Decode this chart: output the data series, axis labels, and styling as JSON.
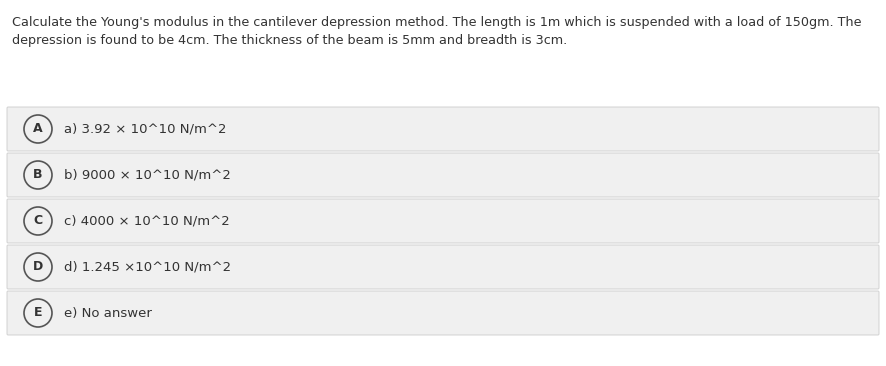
{
  "question_line1": "Calculate the Young's modulus in the cantilever depression method. The length is 1m which is suspended with a load of 150gm. The",
  "question_line2": "depression is found to be 4cm. The thickness of the beam is 5mm and breadth is 3cm.",
  "options": [
    {
      "label": "A",
      "text": "a) 3.92 × 10^10 N/m^2"
    },
    {
      "label": "B",
      "text": "b) 9000 × 10^10 N/m^2"
    },
    {
      "label": "C",
      "text": "c) 4000 × 10^10 N/m^2"
    },
    {
      "label": "D",
      "text": "d) 1.245 ×10^10 N/m^2"
    },
    {
      "label": "E",
      "text": "e) No answer"
    }
  ],
  "bg_color": "#ffffff",
  "option_bg_color": "#f0f0f0",
  "option_border_color": "#cccccc",
  "text_color": "#333333",
  "circle_edge_color": "#555555",
  "question_fontsize": 9.2,
  "option_fontsize": 9.5,
  "label_fontsize": 9.0
}
